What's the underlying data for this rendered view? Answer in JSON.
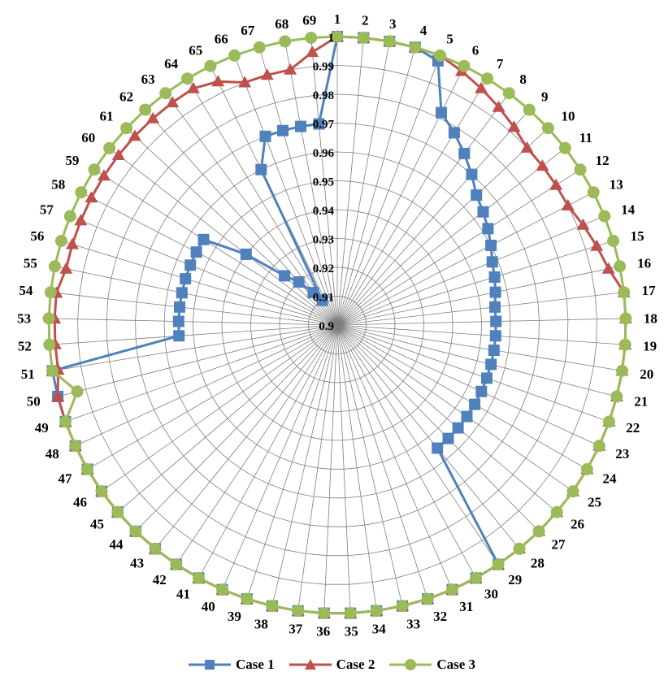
{
  "chart_data": {
    "type": "radar",
    "categories": [
      "1",
      "2",
      "3",
      "4",
      "5",
      "6",
      "7",
      "8",
      "9",
      "10",
      "11",
      "12",
      "13",
      "14",
      "15",
      "16",
      "17",
      "18",
      "19",
      "20",
      "21",
      "22",
      "23",
      "24",
      "25",
      "26",
      "27",
      "28",
      "29",
      "30",
      "31",
      "32",
      "33",
      "34",
      "35",
      "36",
      "37",
      "38",
      "39",
      "40",
      "41",
      "42",
      "43",
      "44",
      "45",
      "46",
      "47",
      "48",
      "49",
      "50",
      "51",
      "52",
      "53",
      "54",
      "55",
      "56",
      "57",
      "58",
      "59",
      "60",
      "61",
      "62",
      "63",
      "64",
      "65",
      "66",
      "67",
      "68",
      "69"
    ],
    "radial_ticks": [
      "0.9",
      "0.91",
      "0.92",
      "0.93",
      "0.94",
      "0.95",
      "0.96",
      "0.97",
      "0.98",
      "0.99",
      "1"
    ],
    "rlim": [
      0.9,
      1.0
    ],
    "grid": true,
    "legend_position": "bottom",
    "series": [
      {
        "name": "Case 1",
        "color": "#4f81bd",
        "marker": "square",
        "values": [
          1.0,
          1.0,
          1.0,
          1.0,
          0.998,
          0.982,
          0.978,
          0.974,
          0.97,
          0.966,
          0.964,
          0.962,
          0.96,
          0.958,
          0.957,
          0.956,
          0.955,
          0.955,
          0.955,
          0.955,
          0.955,
          0.955,
          0.955,
          0.955,
          0.955,
          0.955,
          0.955,
          0.955,
          1.0,
          1.0,
          1.0,
          1.0,
          1.0,
          1.0,
          1.0,
          1.0,
          1.0,
          1.0,
          1.0,
          1.0,
          1.0,
          1.0,
          1.0,
          1.0,
          1.0,
          1.0,
          1.0,
          1.0,
          1.0,
          1.0,
          1.0,
          0.955,
          0.955,
          0.955,
          0.955,
          0.955,
          0.955,
          0.955,
          0.955,
          0.94,
          0.925,
          0.92,
          0.914,
          0.91,
          0.96,
          0.97,
          0.97,
          0.97,
          0.97
        ]
      },
      {
        "name": "Case 2",
        "color": "#c0504d",
        "marker": "triangle",
        "values": [
          1.0,
          1.0,
          1.0,
          1.0,
          1.0,
          0.998,
          0.996,
          0.994,
          0.992,
          0.99,
          0.99,
          0.99,
          0.99,
          0.992,
          0.994,
          0.996,
          1.0,
          1.0,
          1.0,
          1.0,
          1.0,
          1.0,
          1.0,
          1.0,
          1.0,
          1.0,
          1.0,
          1.0,
          1.0,
          1.0,
          1.0,
          1.0,
          1.0,
          1.0,
          1.0,
          1.0,
          1.0,
          1.0,
          1.0,
          1.0,
          1.0,
          1.0,
          1.0,
          1.0,
          1.0,
          1.0,
          1.0,
          1.0,
          1.0,
          1.0,
          0.998,
          0.998,
          0.998,
          0.998,
          0.996,
          0.996,
          0.996,
          0.996,
          0.996,
          0.996,
          0.996,
          0.996,
          0.996,
          0.996,
          0.994,
          0.99,
          0.99,
          0.99,
          0.995
        ]
      },
      {
        "name": "Case 3",
        "color": "#9bbb59",
        "marker": "circle",
        "values": [
          1.0,
          1.0,
          1.0,
          1.0,
          1.0,
          1.0,
          1.0,
          1.0,
          1.0,
          1.0,
          1.0,
          1.0,
          1.0,
          1.0,
          1.0,
          1.0,
          1.0,
          1.0,
          1.0,
          1.0,
          1.0,
          1.0,
          1.0,
          1.0,
          1.0,
          1.0,
          1.0,
          1.0,
          1.0,
          1.0,
          1.0,
          1.0,
          1.0,
          1.0,
          1.0,
          1.0,
          1.0,
          1.0,
          1.0,
          1.0,
          1.0,
          1.0,
          1.0,
          1.0,
          1.0,
          1.0,
          1.0,
          1.0,
          1.0,
          0.993,
          1.0,
          1.0,
          1.0,
          1.0,
          1.0,
          1.0,
          1.0,
          1.0,
          1.0,
          1.0,
          1.0,
          1.0,
          1.0,
          1.0,
          1.0,
          1.0,
          1.0,
          1.0,
          1.0
        ]
      }
    ]
  }
}
